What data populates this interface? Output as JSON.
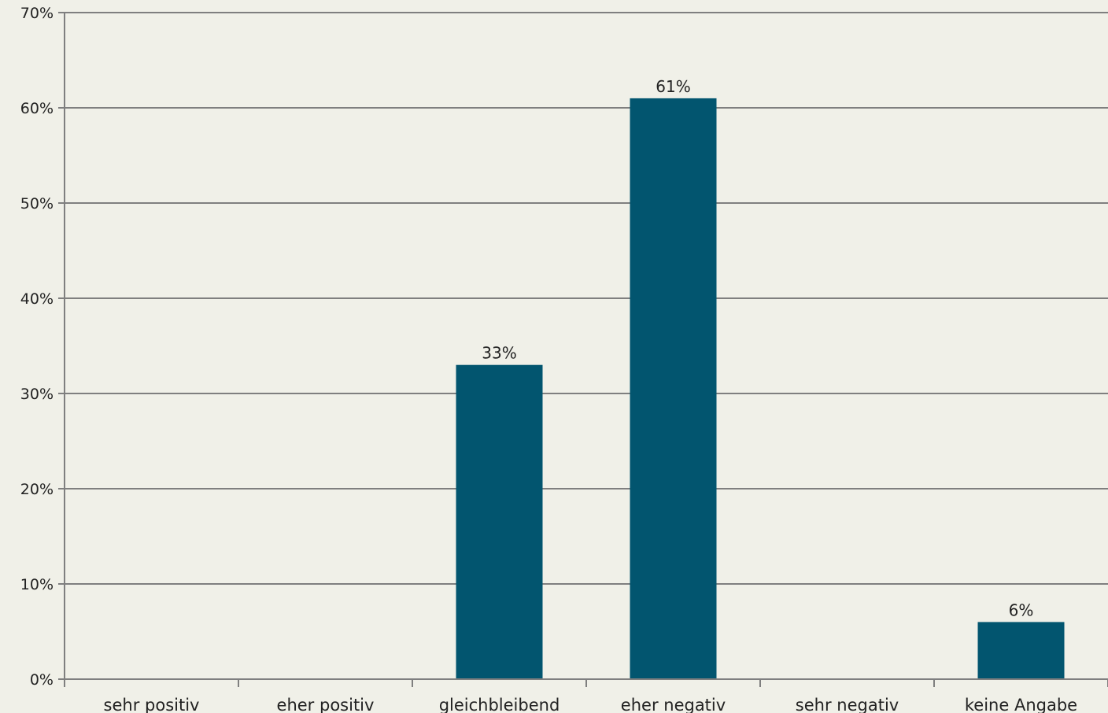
{
  "chart_data": {
    "type": "bar",
    "categories": [
      "sehr positiv",
      "eher positiv",
      "gleichbleibend",
      "eher negativ",
      "sehr negativ",
      "keine Angabe"
    ],
    "values": [
      0,
      0,
      33,
      61,
      0,
      6
    ],
    "data_labels": [
      "",
      "",
      "33%",
      "61%",
      "",
      "6%"
    ],
    "title": "",
    "xlabel": "",
    "ylabel": "",
    "ylim": [
      0,
      70
    ],
    "y_ticks": [
      0,
      10,
      20,
      30,
      40,
      50,
      60,
      70
    ],
    "y_tick_labels": [
      "0%",
      "10%",
      "20%",
      "30%",
      "40%",
      "50%",
      "60%",
      "70%"
    ],
    "grid": true,
    "legend": "none",
    "colors": {
      "bar": "#02556f",
      "grid": "#7f7f7f",
      "background": "#f0f0e8",
      "text": "#222222"
    }
  }
}
